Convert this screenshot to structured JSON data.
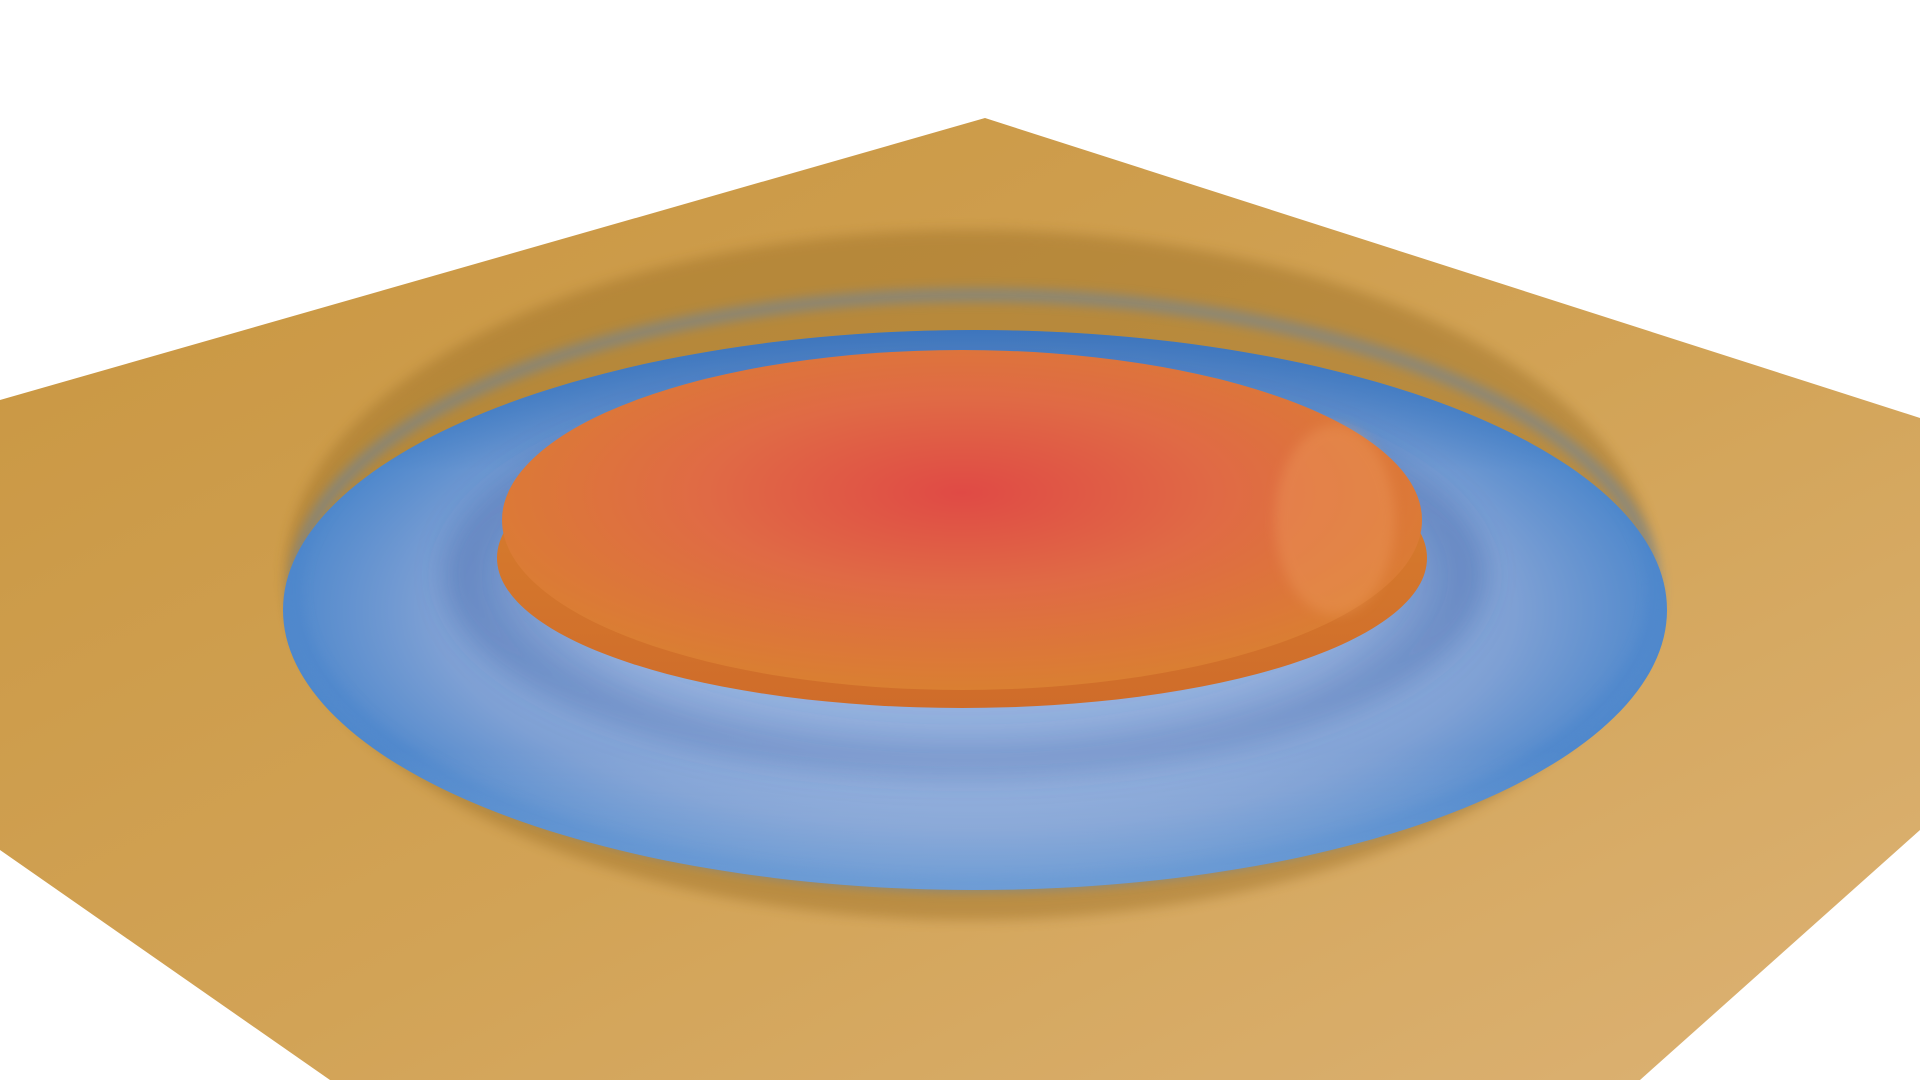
{
  "scene": {
    "subject": "3d-rendered-surface",
    "colors": {
      "background": "#ffffff",
      "plane_dark": "#c8953f",
      "plane_mid": "#d2a356",
      "plane_light": "#dcb274",
      "ring_outer_shadow": "#4f88cc",
      "ring_mid": "#7ea0d4",
      "ring_highlight": "#95b1de",
      "peak_center": "#e04a45",
      "peak_mid": "#e06a45",
      "peak_edge": "#d9822f",
      "peak_rim": "#cf6c2a"
    }
  }
}
